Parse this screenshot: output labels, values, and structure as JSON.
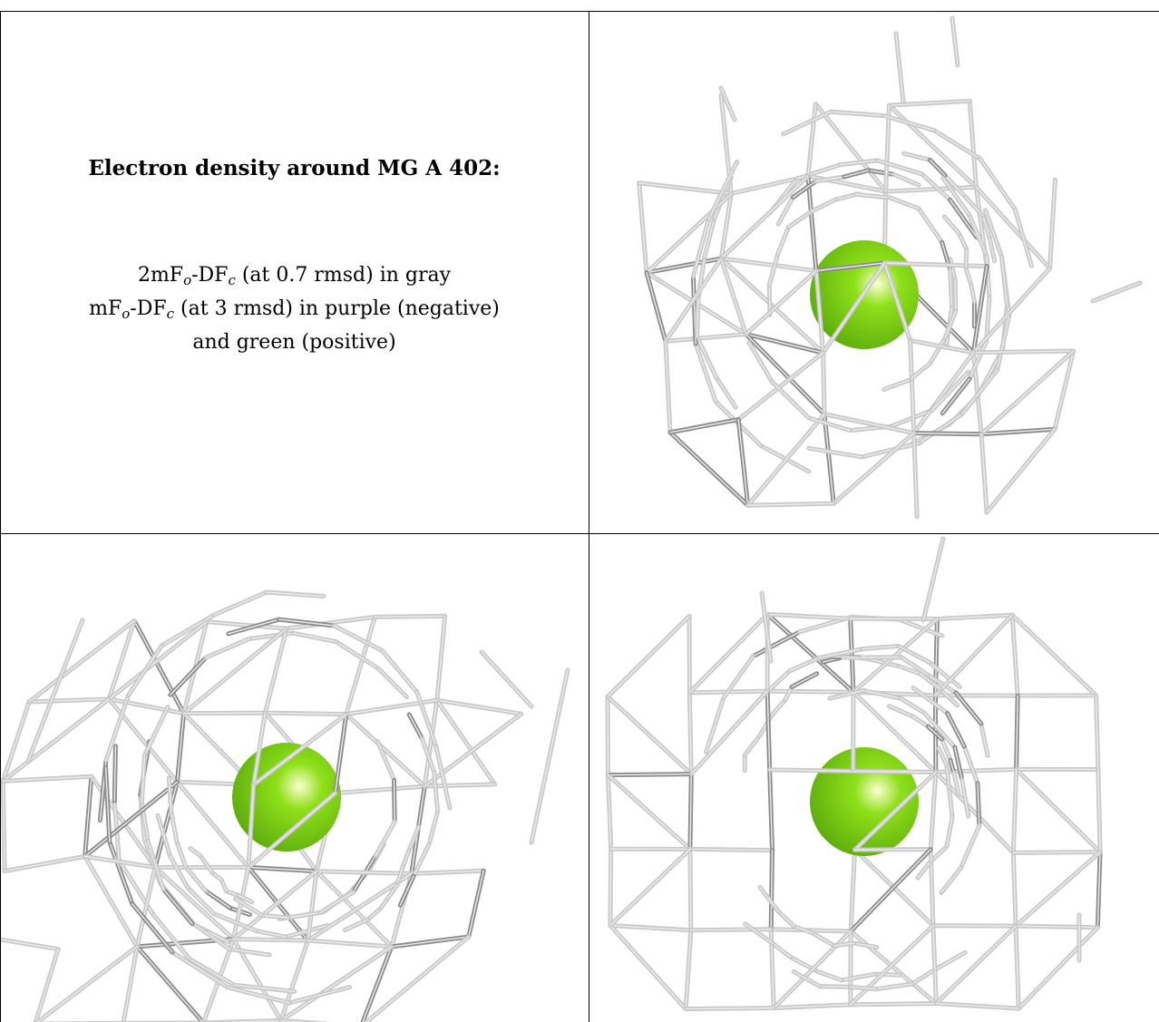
{
  "caption": {
    "title": "Electron density around MG A 402:",
    "line1": {
      "p1": "2mF",
      "s1": "o",
      "p2": "-DF",
      "s2": "c",
      "p3": " (at 0.7 rmsd) in gray"
    },
    "line2": {
      "p1": "mF",
      "s1": "o",
      "p2": "-DF",
      "s2": "c",
      "p3": " (at 3 rmsd) in purple (negative)"
    },
    "line3": "and green (positive)"
  },
  "colors": {
    "mesh": "#c9c9c9",
    "mesh_dark": "#8c8c8c",
    "ion_green": "#8fe01a",
    "background": "#ffffff",
    "border": "#000000"
  },
  "views": [
    {
      "name": "view-top-right",
      "ion": "MG"
    },
    {
      "name": "view-bottom-left",
      "ion": "MG"
    },
    {
      "name": "view-bottom-right",
      "ion": "MG"
    }
  ]
}
